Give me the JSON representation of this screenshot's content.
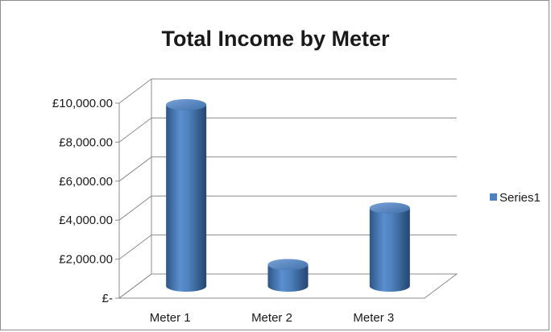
{
  "chart_data": {
    "type": "bar",
    "style": "3d-cylinder",
    "title": "Total Income by Meter",
    "xlabel": "",
    "ylabel": "",
    "categories": [
      "Meter 1",
      "Meter 2",
      "Meter 3"
    ],
    "series": [
      {
        "name": "Series1",
        "values": [
          9300,
          1100,
          4000
        ]
      }
    ],
    "ylim": [
      0,
      10000
    ],
    "ytick_values": [
      0,
      2000,
      4000,
      6000,
      8000,
      10000
    ],
    "ytick_labels": [
      "£-",
      "£2,000.00",
      "£4,000.00",
      "£6,000.00",
      "£8,000.00",
      "£10,000.00"
    ],
    "grid": true,
    "legend_position": "right",
    "colors": {
      "bar": "#4f81bd",
      "bar_dark": "#2d5687",
      "bar_light": "#a6c2e6",
      "grid": "#8c8c8c"
    }
  }
}
